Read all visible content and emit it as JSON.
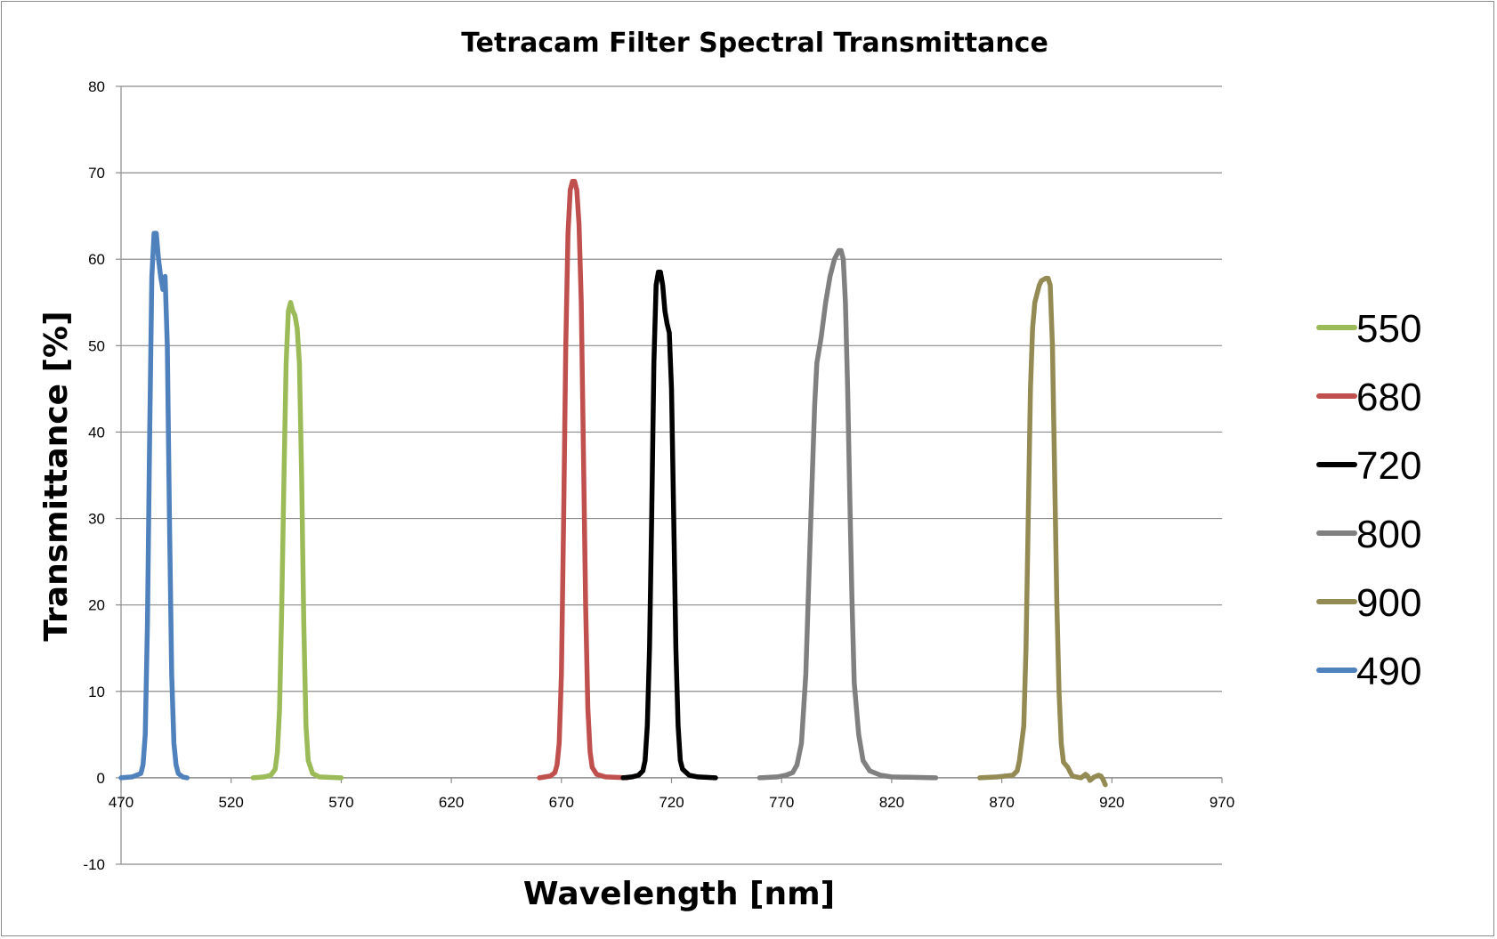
{
  "chart_data": {
    "type": "line",
    "title": "Tetracam Filter Spectral Transmittance",
    "xlabel": "Wavelength [nm]",
    "ylabel": "Transmittance [%]",
    "xlim": [
      470,
      970
    ],
    "ylim": [
      -10,
      80
    ],
    "x_ticks": [
      470,
      520,
      570,
      620,
      670,
      720,
      770,
      820,
      870,
      920,
      970
    ],
    "y_ticks": [
      -10,
      0,
      10,
      20,
      30,
      40,
      50,
      60,
      70,
      80
    ],
    "grid": "horizontal",
    "legend_position": "right",
    "series": [
      {
        "name": "550",
        "color": "#9bbb59",
        "points": [
          [
            530,
            0
          ],
          [
            535,
            0.1
          ],
          [
            538,
            0.3
          ],
          [
            540,
            1
          ],
          [
            541,
            3
          ],
          [
            542,
            8
          ],
          [
            543,
            20
          ],
          [
            544,
            35
          ],
          [
            545,
            48
          ],
          [
            546,
            54
          ],
          [
            547,
            55
          ],
          [
            548,
            54
          ],
          [
            549,
            53.5
          ],
          [
            550,
            52
          ],
          [
            551,
            48
          ],
          [
            552,
            35
          ],
          [
            553,
            18
          ],
          [
            554,
            6
          ],
          [
            555,
            2
          ],
          [
            557,
            0.5
          ],
          [
            560,
            0.1
          ],
          [
            570,
            0
          ]
        ]
      },
      {
        "name": "680",
        "color": "#c0504d",
        "points": [
          [
            660,
            0
          ],
          [
            665,
            0.2
          ],
          [
            667,
            0.6
          ],
          [
            668,
            1.5
          ],
          [
            669,
            4
          ],
          [
            670,
            12
          ],
          [
            671,
            30
          ],
          [
            672,
            50
          ],
          [
            673,
            63
          ],
          [
            674,
            68
          ],
          [
            675,
            69
          ],
          [
            676,
            69
          ],
          [
            677,
            68
          ],
          [
            678,
            64
          ],
          [
            679,
            55
          ],
          [
            680,
            38
          ],
          [
            681,
            20
          ],
          [
            682,
            8
          ],
          [
            683,
            3
          ],
          [
            684,
            1.2
          ],
          [
            686,
            0.4
          ],
          [
            690,
            0.1
          ],
          [
            700,
            0
          ]
        ]
      },
      {
        "name": "720",
        "color": "#000000",
        "points": [
          [
            698,
            0
          ],
          [
            702,
            0.1
          ],
          [
            705,
            0.3
          ],
          [
            707,
            0.8
          ],
          [
            708,
            2
          ],
          [
            709,
            6
          ],
          [
            710,
            15
          ],
          [
            711,
            30
          ],
          [
            712,
            48
          ],
          [
            713,
            57
          ],
          [
            714,
            58.5
          ],
          [
            715,
            58.5
          ],
          [
            716,
            57
          ],
          [
            717,
            54
          ],
          [
            718,
            52.5
          ],
          [
            719,
            51.5
          ],
          [
            720,
            45
          ],
          [
            721,
            30
          ],
          [
            722,
            15
          ],
          [
            723,
            6
          ],
          [
            724,
            2
          ],
          [
            725,
            1
          ],
          [
            728,
            0.3
          ],
          [
            732,
            0.1
          ],
          [
            740,
            0
          ]
        ]
      },
      {
        "name": "800",
        "color": "#808080",
        "points": [
          [
            760,
            0
          ],
          [
            768,
            0.1
          ],
          [
            772,
            0.3
          ],
          [
            775,
            0.6
          ],
          [
            777,
            1.5
          ],
          [
            779,
            4
          ],
          [
            781,
            12
          ],
          [
            783,
            28
          ],
          [
            785,
            43
          ],
          [
            786,
            48
          ],
          [
            788,
            51
          ],
          [
            790,
            55
          ],
          [
            792,
            58
          ],
          [
            794,
            60
          ],
          [
            796,
            61
          ],
          [
            797,
            61
          ],
          [
            798,
            60
          ],
          [
            799,
            55
          ],
          [
            800,
            45
          ],
          [
            801,
            32
          ],
          [
            802,
            20
          ],
          [
            803,
            11
          ],
          [
            805,
            5
          ],
          [
            807,
            2
          ],
          [
            810,
            0.8
          ],
          [
            815,
            0.3
          ],
          [
            820,
            0.1
          ],
          [
            840,
            0
          ]
        ]
      },
      {
        "name": "900",
        "color": "#948a54",
        "points": [
          [
            860,
            0
          ],
          [
            868,
            0.1
          ],
          [
            875,
            0.3
          ],
          [
            877,
            0.8
          ],
          [
            878,
            2
          ],
          [
            880,
            6
          ],
          [
            881,
            15
          ],
          [
            882,
            30
          ],
          [
            883,
            45
          ],
          [
            884,
            52
          ],
          [
            885,
            55
          ],
          [
            887,
            57
          ],
          [
            888,
            57.5
          ],
          [
            890,
            57.8
          ],
          [
            891,
            57.8
          ],
          [
            892,
            57
          ],
          [
            893,
            50
          ],
          [
            894,
            35
          ],
          [
            895,
            20
          ],
          [
            896,
            10
          ],
          [
            897,
            4
          ],
          [
            898,
            1.8
          ],
          [
            900,
            1.2
          ],
          [
            902,
            0.2
          ],
          [
            904,
            0.1
          ],
          [
            906,
            0
          ],
          [
            908,
            0.4
          ],
          [
            909,
            0.2
          ],
          [
            910,
            -0.3
          ],
          [
            912,
            0.1
          ],
          [
            914,
            0.3
          ],
          [
            915,
            0.2
          ],
          [
            916,
            -0.2
          ],
          [
            917,
            -0.8
          ]
        ]
      },
      {
        "name": "490",
        "color": "#4f81bd",
        "points": [
          [
            470,
            0
          ],
          [
            475,
            0.1
          ],
          [
            479,
            0.5
          ],
          [
            480,
            1.5
          ],
          [
            481,
            5
          ],
          [
            482,
            18
          ],
          [
            483,
            40
          ],
          [
            484,
            58
          ],
          [
            485,
            63
          ],
          [
            486,
            63
          ],
          [
            487,
            60
          ],
          [
            488,
            58
          ],
          [
            489,
            56.5
          ],
          [
            490,
            58
          ],
          [
            491,
            50
          ],
          [
            492,
            30
          ],
          [
            493,
            12
          ],
          [
            494,
            4
          ],
          [
            495,
            1.5
          ],
          [
            496,
            0.5
          ],
          [
            498,
            0.1
          ],
          [
            500,
            0
          ]
        ]
      }
    ]
  }
}
